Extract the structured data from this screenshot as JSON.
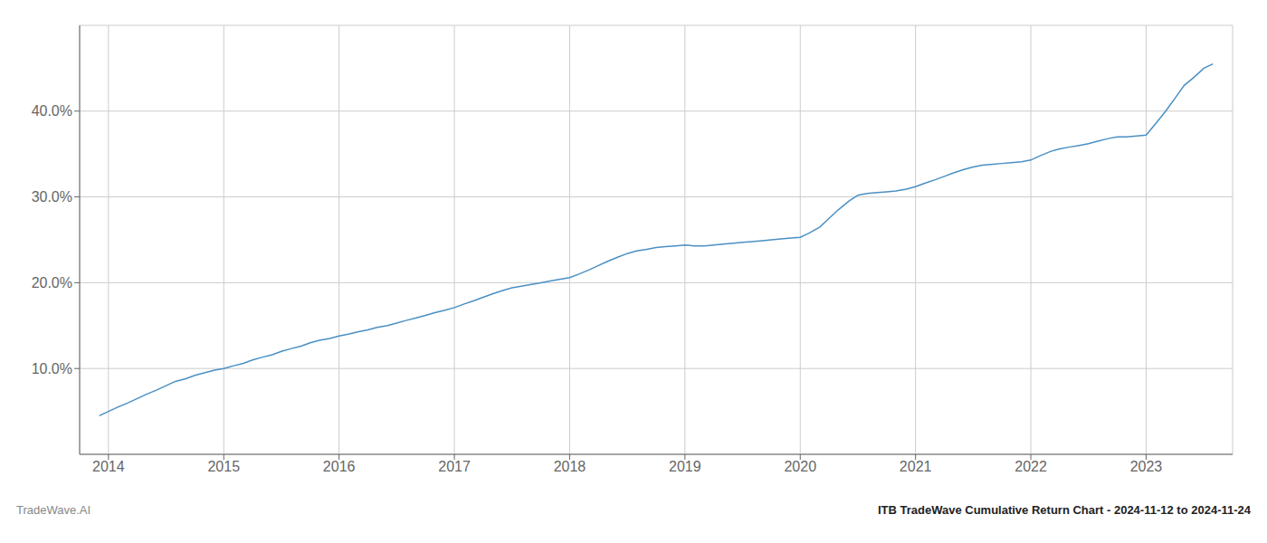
{
  "chart_data": {
    "type": "line",
    "title": "ITB TradeWave Cumulative Return Chart - 2024-11-12 to 2024-11-24",
    "annotations": [
      "TradeWave.AI"
    ],
    "color": "#4a90c4",
    "grid": true,
    "x": [
      2013.92,
      2014.0,
      2014.08,
      2014.17,
      2014.25,
      2014.33,
      2014.42,
      2014.5,
      2014.58,
      2014.67,
      2014.75,
      2014.83,
      2014.92,
      2015.0,
      2015.08,
      2015.17,
      2015.25,
      2015.33,
      2015.42,
      2015.5,
      2015.58,
      2015.67,
      2015.75,
      2015.83,
      2015.92,
      2016.0,
      2016.08,
      2016.17,
      2016.25,
      2016.33,
      2016.42,
      2016.5,
      2016.58,
      2016.67,
      2016.75,
      2016.83,
      2016.92,
      2017.0,
      2017.08,
      2017.17,
      2017.25,
      2017.33,
      2017.42,
      2017.5,
      2017.58,
      2017.67,
      2017.75,
      2017.83,
      2017.92,
      2018.0,
      2018.08,
      2018.17,
      2018.25,
      2018.33,
      2018.42,
      2018.5,
      2018.58,
      2018.67,
      2018.75,
      2018.83,
      2018.92,
      2019.0,
      2019.08,
      2019.17,
      2019.25,
      2019.33,
      2019.42,
      2019.5,
      2019.58,
      2019.67,
      2019.75,
      2019.83,
      2019.92,
      2020.0,
      2020.08,
      2020.17,
      2020.25,
      2020.33,
      2020.42,
      2020.5,
      2020.58,
      2020.67,
      2020.75,
      2020.83,
      2020.92,
      2021.0,
      2021.08,
      2021.17,
      2021.25,
      2021.33,
      2021.42,
      2021.5,
      2021.58,
      2021.67,
      2021.75,
      2021.83,
      2021.92,
      2022.0,
      2022.08,
      2022.17,
      2022.25,
      2022.33,
      2022.42,
      2022.5,
      2022.58,
      2022.67,
      2022.75,
      2022.83,
      2022.92,
      2023.0,
      2023.08,
      2023.17,
      2023.25,
      2023.33,
      2023.42,
      2023.5,
      2023.58
    ],
    "values": [
      4.5,
      5.0,
      5.5,
      6.0,
      6.5,
      7.0,
      7.5,
      8.0,
      8.5,
      8.8,
      9.2,
      9.5,
      9.8,
      10.0,
      10.3,
      10.6,
      11.0,
      11.3,
      11.6,
      12.0,
      12.3,
      12.6,
      13.0,
      13.3,
      13.5,
      13.8,
      14.0,
      14.3,
      14.5,
      14.8,
      15.0,
      15.3,
      15.6,
      15.9,
      16.2,
      16.5,
      16.8,
      17.1,
      17.5,
      17.9,
      18.3,
      18.7,
      19.1,
      19.4,
      19.6,
      19.8,
      20.0,
      20.2,
      20.4,
      20.6,
      21.0,
      21.5,
      22.0,
      22.5,
      23.0,
      23.4,
      23.7,
      23.9,
      24.1,
      24.2,
      24.3,
      24.4,
      24.3,
      24.3,
      24.4,
      24.5,
      24.6,
      24.7,
      24.8,
      24.9,
      25.0,
      25.1,
      25.2,
      25.3,
      25.8,
      26.5,
      27.5,
      28.5,
      29.5,
      30.2,
      30.4,
      30.5,
      30.6,
      30.7,
      30.9,
      31.2,
      31.6,
      32.0,
      32.4,
      32.8,
      33.2,
      33.5,
      33.7,
      33.8,
      33.9,
      34.0,
      34.1,
      34.3,
      34.8,
      35.3,
      35.6,
      35.8,
      36.0,
      36.2,
      36.5,
      36.8,
      37.0,
      37.0,
      37.1,
      37.2,
      38.5,
      40.0,
      41.5,
      43.0,
      44.0,
      45.0,
      45.5
    ],
    "xlim": [
      2013.75,
      2023.75
    ],
    "xticks": [
      2014,
      2015,
      2016,
      2017,
      2018,
      2019,
      2020,
      2021,
      2022,
      2023
    ],
    "ylim": [
      0,
      50
    ],
    "yticks": [
      {
        "value": 10.0,
        "label": "10.0%"
      },
      {
        "value": 20.0,
        "label": "20.0%"
      },
      {
        "value": 30.0,
        "label": "30.0%"
      },
      {
        "value": 40.0,
        "label": "40.0%"
      }
    ]
  }
}
